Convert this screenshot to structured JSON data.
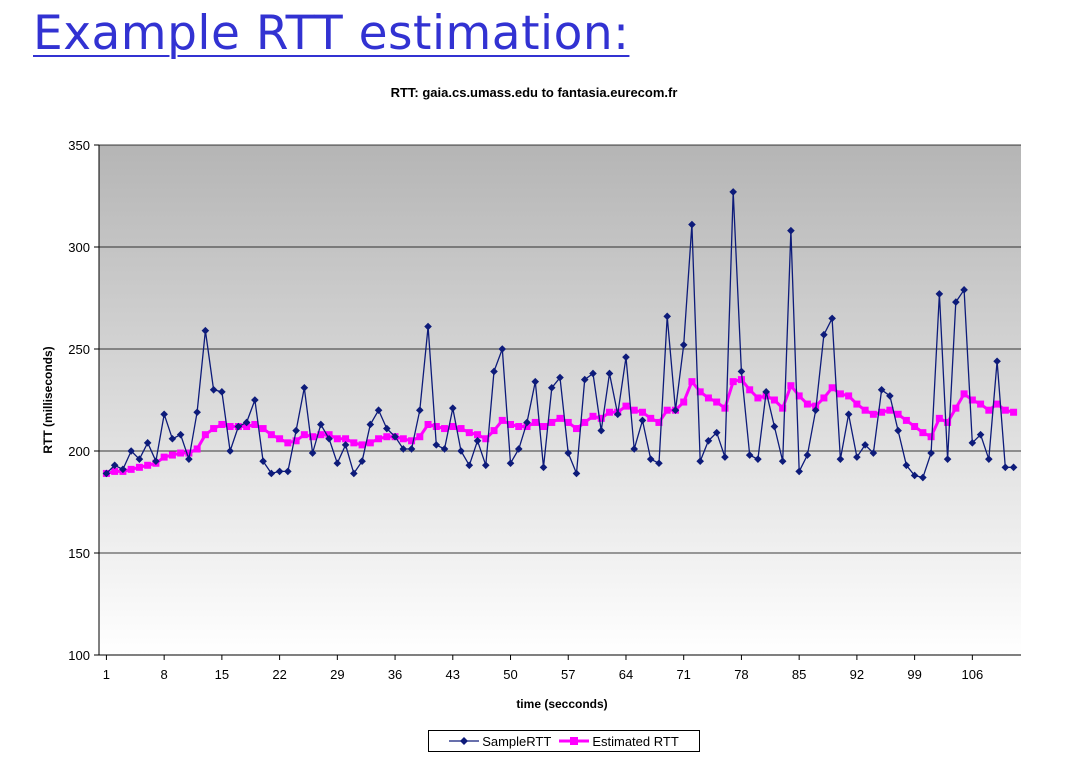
{
  "slide": {
    "title": "Example RTT estimation:"
  },
  "colors": {
    "sample": "#0d1b7a",
    "estimated": "#ff00ff",
    "title": "#3232d2"
  },
  "chart_data": {
    "type": "line",
    "title": "RTT: gaia.cs.umass.edu to fantasia.eurecom.fr",
    "xlabel": "time (secconds)",
    "ylabel": "RTT (milliseconds)",
    "ylim": [
      100,
      350
    ],
    "yticks": [
      100,
      150,
      200,
      250,
      300,
      350
    ],
    "xticks": [
      1,
      8,
      15,
      22,
      29,
      36,
      43,
      50,
      57,
      64,
      71,
      78,
      85,
      92,
      99,
      106
    ],
    "x": [
      1,
      2,
      3,
      4,
      5,
      6,
      7,
      8,
      9,
      10,
      11,
      12,
      13,
      14,
      15,
      16,
      17,
      18,
      19,
      20,
      21,
      22,
      23,
      24,
      25,
      26,
      27,
      28,
      29,
      30,
      31,
      32,
      33,
      34,
      35,
      36,
      37,
      38,
      39,
      40,
      41,
      42,
      43,
      44,
      45,
      46,
      47,
      48,
      49,
      50,
      51,
      52,
      53,
      54,
      55,
      56,
      57,
      58,
      59,
      60,
      61,
      62,
      63,
      64,
      65,
      66,
      67,
      68,
      69,
      70,
      71,
      72,
      73,
      74,
      75,
      76,
      77,
      78,
      79,
      80,
      81,
      82,
      83,
      84,
      85,
      86,
      87,
      88,
      89,
      90,
      91,
      92,
      93,
      94,
      95,
      96,
      97,
      98,
      99,
      100,
      101,
      102,
      103,
      104,
      105,
      106,
      107,
      108,
      109,
      110,
      111
    ],
    "grid": true,
    "legend_position": "bottom",
    "series": [
      {
        "name": "SampleRTT",
        "marker": "diamond",
        "values": [
          189,
          193,
          191,
          200,
          196,
          204,
          195,
          218,
          206,
          208,
          196,
          219,
          259,
          230,
          229,
          200,
          212,
          214,
          225,
          195,
          189,
          190,
          190,
          210,
          231,
          199,
          213,
          206,
          194,
          203,
          189,
          195,
          213,
          220,
          211,
          207,
          201,
          201,
          220,
          261,
          203,
          201,
          221,
          200,
          193,
          205,
          193,
          239,
          250,
          194,
          201,
          214,
          234,
          192,
          231,
          236,
          199,
          189,
          235,
          238,
          210,
          238,
          218,
          246,
          201,
          215,
          196,
          194,
          266,
          220,
          252,
          311,
          195,
          205,
          209,
          197,
          327,
          239,
          198,
          196,
          229,
          212,
          195,
          308,
          190,
          198,
          220,
          257,
          265,
          196,
          218,
          197,
          203,
          199,
          230,
          227,
          210,
          193,
          188,
          187,
          199,
          277,
          196,
          273,
          279,
          204,
          208,
          196,
          244,
          192,
          192
        ]
      },
      {
        "name": "Estimated RTT",
        "marker": "square",
        "values": [
          189,
          190,
          190,
          191,
          192,
          193,
          194,
          197,
          198,
          199,
          199,
          201,
          208,
          211,
          213,
          212,
          212,
          212,
          213,
          211,
          208,
          206,
          204,
          205,
          208,
          207,
          208,
          208,
          206,
          206,
          204,
          203,
          204,
          206,
          207,
          207,
          206,
          205,
          207,
          213,
          212,
          211,
          212,
          211,
          209,
          208,
          206,
          210,
          215,
          213,
          212,
          212,
          214,
          212,
          214,
          216,
          214,
          211,
          214,
          217,
          216,
          219,
          219,
          222,
          220,
          219,
          216,
          214,
          220,
          220,
          224,
          234,
          229,
          226,
          224,
          221,
          234,
          235,
          230,
          226,
          227,
          225,
          221,
          232,
          227,
          223,
          222,
          226,
          231,
          228,
          227,
          223,
          220,
          218,
          219,
          220,
          218,
          215,
          212,
          209,
          207,
          216,
          214,
          221,
          228,
          225,
          223,
          220,
          223,
          220,
          219
        ]
      }
    ]
  }
}
